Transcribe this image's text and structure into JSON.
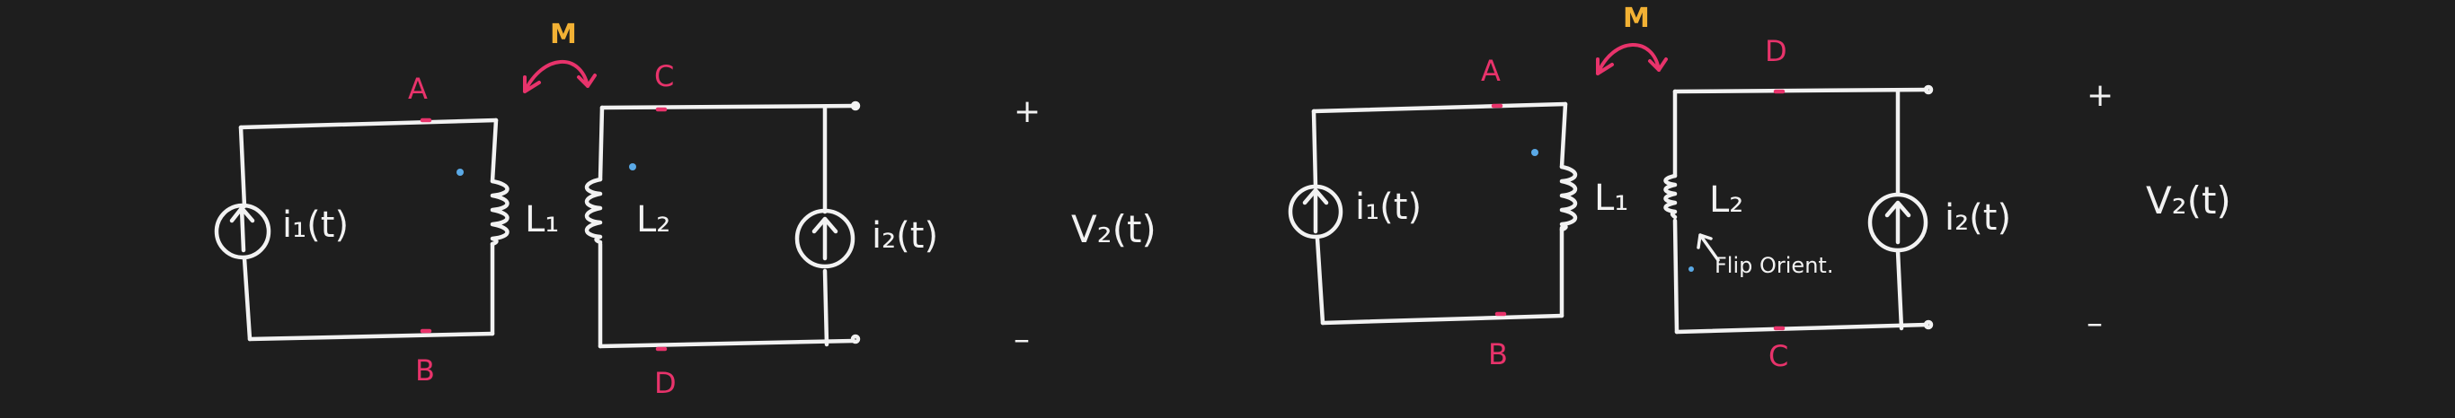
{
  "colors": {
    "background": "#1e1e1e",
    "ink": "#f2f2f2",
    "node_label": "#e8336b",
    "mutual_label": "#f2b134",
    "dot": "#5aa9e6"
  },
  "left": {
    "source1": "i₁(t)",
    "inductor1": "L₁",
    "inductor2": "L₂",
    "source2": "i₂(t)",
    "mutual": "M",
    "node_a": "A",
    "node_b": "B",
    "node_c": "C",
    "node_d": "D",
    "plus": "+",
    "voltage": "V₂(t)",
    "minus": "–"
  },
  "right": {
    "source1": "i₁(t)",
    "inductor1": "L₁",
    "inductor2": "L₂",
    "source2": "i₂(t)",
    "mutual": "M",
    "node_a": "A",
    "node_b": "B",
    "node_c": "C",
    "node_d": "D",
    "plus": "+",
    "voltage": "V₂(t)",
    "minus": "–",
    "note": "Flip Orient."
  }
}
